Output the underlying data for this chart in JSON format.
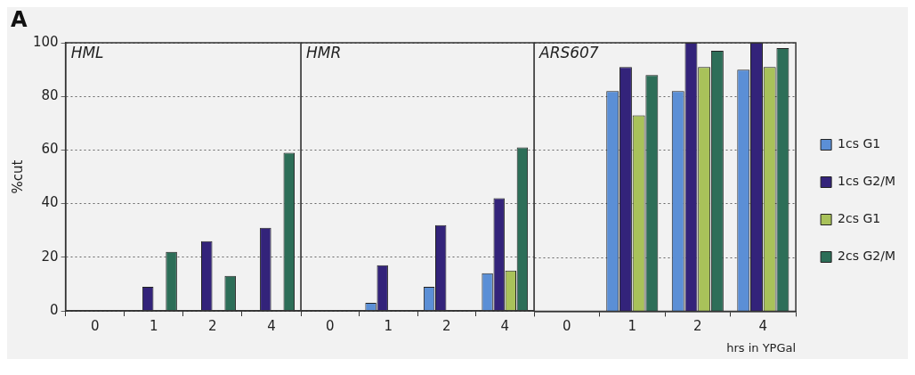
{
  "chart_data": [
    {
      "type": "bar",
      "title": "HML",
      "annotations": [
        "A"
      ],
      "ylabel": "%cut",
      "categories": [
        "0",
        "1",
        "2",
        "4"
      ],
      "ylim": [
        0,
        100
      ],
      "yticks": [
        0,
        20,
        40,
        60,
        80,
        100
      ],
      "grid": "y",
      "series": [
        {
          "color": "#5b8fd6",
          "values": [
            0,
            0,
            0,
            0
          ]
        },
        {
          "color": "#33237a",
          "values": [
            0,
            9,
            26,
            31
          ]
        },
        {
          "color": "#a9c25a",
          "values": [
            0,
            0,
            0,
            0
          ]
        },
        {
          "color": "#2d6e58",
          "values": [
            0,
            22,
            13,
            59
          ]
        }
      ]
    },
    {
      "type": "bar",
      "title": "HMR",
      "categories": [
        "0",
        "1",
        "2",
        "4"
      ],
      "ylim": [
        0,
        100
      ],
      "yticks": [
        0,
        20,
        40,
        60,
        80,
        100
      ],
      "grid": "y",
      "tick_labels": "x",
      "series": [
        {
          "color": "#5b8fd6",
          "values": [
            0,
            3,
            9,
            14
          ]
        },
        {
          "color": "#33237a",
          "values": [
            0,
            17,
            32,
            42
          ]
        },
        {
          "color": "#a9c25a",
          "values": [
            0,
            0,
            0,
            15
          ]
        },
        {
          "color": "#2d6e58",
          "values": [
            0,
            0,
            0,
            61
          ]
        }
      ]
    },
    {
      "type": "bar",
      "title": "ARS607",
      "xlabel": "hrs in YPGal",
      "categories": [
        "0",
        "1",
        "2",
        "4"
      ],
      "ylim": [
        0,
        100
      ],
      "yticks": [
        0,
        20,
        40,
        60,
        80,
        100
      ],
      "grid": "y",
      "tick_labels": "x",
      "legend": "right",
      "series": [
        {
          "name": "1cs G1",
          "color": "#5b8fd6",
          "values": [
            0,
            82,
            82,
            90
          ]
        },
        {
          "name": "1cs G2/M",
          "color": "#33237a",
          "values": [
            0,
            91,
            100,
            100
          ]
        },
        {
          "name": "2cs G1",
          "color": "#a9c25a",
          "values": [
            0,
            73,
            91,
            91
          ]
        },
        {
          "name": "2cs G2/M",
          "color": "#2d6e58",
          "values": [
            0,
            88,
            97,
            98
          ]
        }
      ]
    }
  ]
}
